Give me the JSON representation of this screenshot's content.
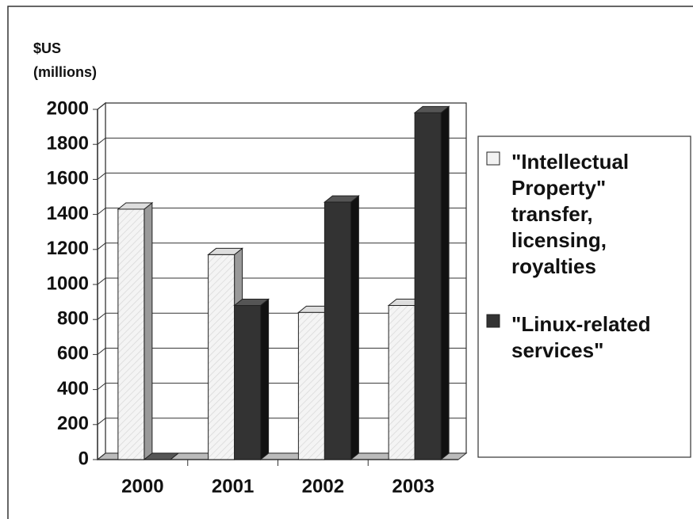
{
  "chart_data": {
    "type": "bar3d",
    "ylabel": [
      "$US",
      "(millions)"
    ],
    "categories": [
      "2000",
      "2001",
      "2002",
      "2003"
    ],
    "series": [
      {
        "name": "\"Intellectual Property\" transfer, licensing, royalties",
        "color": "#f2f2f2",
        "values": [
          1430,
          1170,
          840,
          880
        ]
      },
      {
        "name": "\"Linux-related services\"",
        "color": "#333333",
        "values": [
          0,
          880,
          1470,
          1980
        ]
      }
    ],
    "ylim": [
      0,
      2000
    ],
    "yticks": [
      0,
      200,
      400,
      600,
      800,
      1000,
      1200,
      1400,
      1600,
      1800,
      2000
    ],
    "grid": true
  }
}
